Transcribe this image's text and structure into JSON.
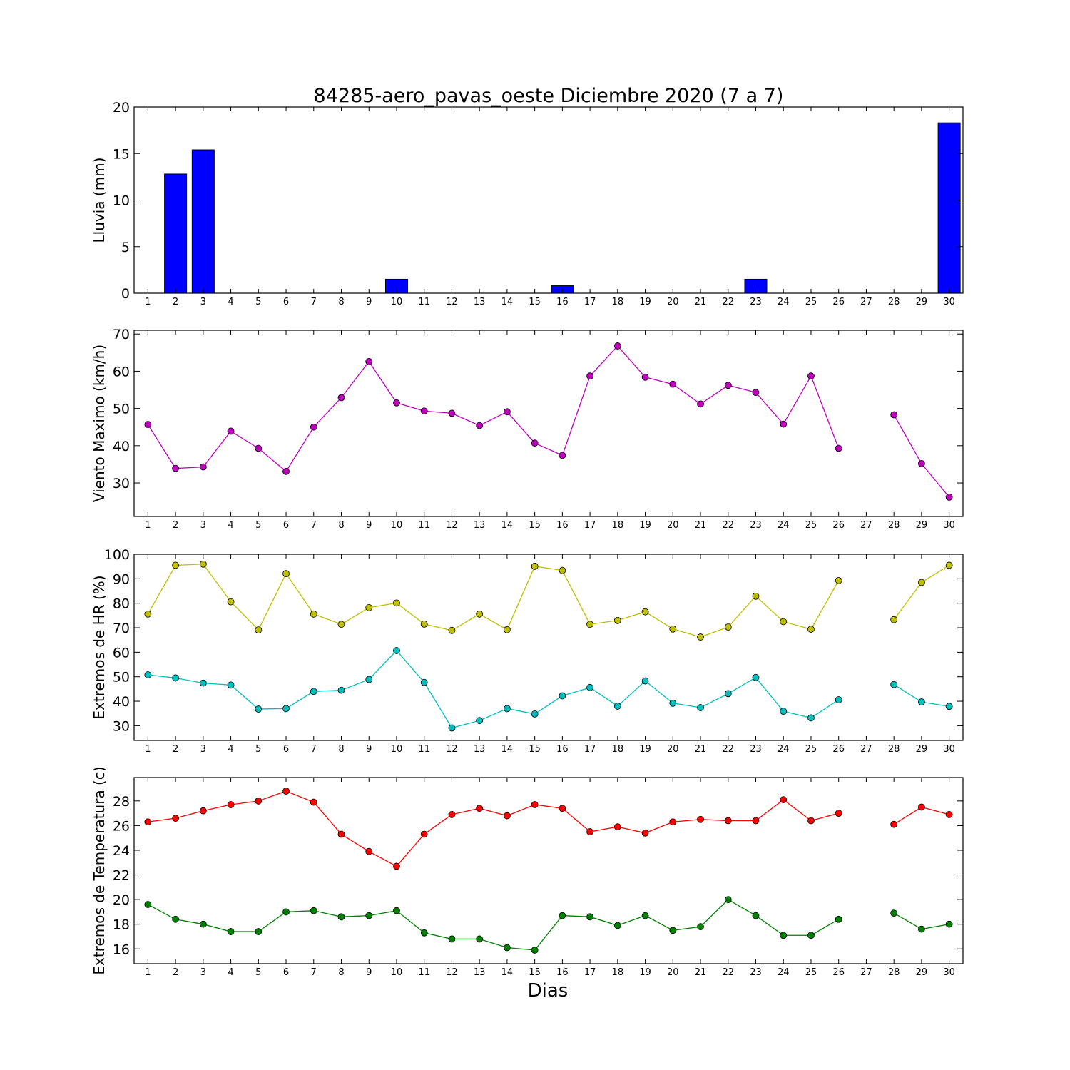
{
  "title": "84285-aero_pavas_oeste Diciembre 2020  (7 a 7)",
  "xlabel": "Dias",
  "chart_data": [
    {
      "type": "bar",
      "ylabel": "Lluvia (mm)",
      "ylim": [
        0,
        20
      ],
      "yticks": [
        0,
        5,
        10,
        15,
        20
      ],
      "categories": [
        "1",
        "2",
        "3",
        "4",
        "5",
        "6",
        "7",
        "8",
        "9",
        "10",
        "11",
        "12",
        "13",
        "14",
        "15",
        "16",
        "17",
        "18",
        "19",
        "20",
        "21",
        "22",
        "23",
        "24",
        "25",
        "26",
        "27",
        "28",
        "29",
        "30"
      ],
      "series": [
        {
          "color": "#0000ff",
          "values": [
            0,
            12.8,
            15.4,
            0,
            0,
            0,
            0,
            0,
            0,
            1.5,
            0,
            0,
            0,
            0,
            0,
            0.8,
            0,
            0,
            0,
            0,
            0,
            0,
            1.5,
            0,
            0,
            0,
            0,
            0,
            0,
            18.3
          ]
        }
      ]
    },
    {
      "type": "line",
      "ylabel": "Viento Maximo (km/h)",
      "ylim": [
        21,
        71
      ],
      "yticks": [
        30,
        40,
        50,
        60,
        70
      ],
      "categories": [
        "1",
        "2",
        "3",
        "4",
        "5",
        "6",
        "7",
        "8",
        "9",
        "10",
        "11",
        "12",
        "13",
        "14",
        "15",
        "16",
        "17",
        "18",
        "19",
        "20",
        "21",
        "22",
        "23",
        "24",
        "25",
        "26",
        "27",
        "28",
        "29",
        "30"
      ],
      "series": [
        {
          "color": "#bf00bf",
          "values": [
            45.7,
            33.9,
            34.3,
            43.9,
            39.3,
            33.1,
            45.0,
            52.9,
            62.6,
            51.5,
            49.3,
            48.7,
            45.4,
            49.1,
            40.7,
            37.4,
            58.7,
            66.8,
            58.4,
            56.5,
            51.2,
            56.2,
            54.3,
            45.8,
            58.7,
            39.3,
            null,
            48.3,
            35.2,
            26.2
          ]
        }
      ]
    },
    {
      "type": "line",
      "ylabel": "Extremos de HR (%)",
      "ylim": [
        24,
        100
      ],
      "yticks": [
        30,
        40,
        50,
        60,
        70,
        80,
        90,
        100
      ],
      "categories": [
        "1",
        "2",
        "3",
        "4",
        "5",
        "6",
        "7",
        "8",
        "9",
        "10",
        "11",
        "12",
        "13",
        "14",
        "15",
        "16",
        "17",
        "18",
        "19",
        "20",
        "21",
        "22",
        "23",
        "24",
        "25",
        "26",
        "27",
        "28",
        "29",
        "30"
      ],
      "series": [
        {
          "color": "#bfbf00",
          "values": [
            75.6,
            95.5,
            96.0,
            80.6,
            69.1,
            92.1,
            75.6,
            71.4,
            78.2,
            80.1,
            71.5,
            68.9,
            75.6,
            69.2,
            95.1,
            93.4,
            71.4,
            73.0,
            76.5,
            69.5,
            66.2,
            70.3,
            82.9,
            72.5,
            69.4,
            89.3,
            null,
            73.3,
            88.5,
            95.5
          ]
        },
        {
          "color": "#00bfbf",
          "values": [
            50.8,
            49.5,
            47.4,
            46.6,
            36.8,
            37.0,
            44.0,
            44.5,
            48.9,
            60.7,
            47.7,
            29.1,
            32.1,
            37.0,
            34.8,
            42.2,
            45.6,
            38.0,
            48.3,
            39.2,
            37.4,
            43.1,
            49.7,
            35.9,
            33.2,
            40.6,
            null,
            46.8,
            39.7,
            37.9
          ]
        }
      ]
    },
    {
      "type": "line",
      "ylabel": "Extremos de Temperatura (c)",
      "ylim": [
        14.8,
        29.9
      ],
      "yticks": [
        16,
        18,
        20,
        22,
        24,
        26,
        28
      ],
      "categories": [
        "1",
        "2",
        "3",
        "4",
        "5",
        "6",
        "7",
        "8",
        "9",
        "10",
        "11",
        "12",
        "13",
        "14",
        "15",
        "16",
        "17",
        "18",
        "19",
        "20",
        "21",
        "22",
        "23",
        "24",
        "25",
        "26",
        "27",
        "28",
        "29",
        "30"
      ],
      "series": [
        {
          "color": "#ff0000",
          "values": [
            26.3,
            26.6,
            27.2,
            27.7,
            28.0,
            28.8,
            27.9,
            25.3,
            23.9,
            22.7,
            25.3,
            26.9,
            27.4,
            26.8,
            27.7,
            27.4,
            25.5,
            25.9,
            25.4,
            26.3,
            26.5,
            26.4,
            26.4,
            28.1,
            26.4,
            27.0,
            null,
            26.1,
            27.5,
            26.9
          ]
        },
        {
          "color": "#008000",
          "values": [
            19.6,
            18.4,
            18.0,
            17.4,
            17.4,
            19.0,
            19.1,
            18.6,
            18.7,
            19.1,
            17.3,
            16.8,
            16.8,
            16.1,
            15.9,
            18.7,
            18.6,
            17.9,
            18.7,
            17.5,
            17.8,
            20.0,
            18.7,
            17.1,
            17.1,
            18.4,
            null,
            18.9,
            17.6,
            18.0
          ]
        }
      ]
    }
  ]
}
